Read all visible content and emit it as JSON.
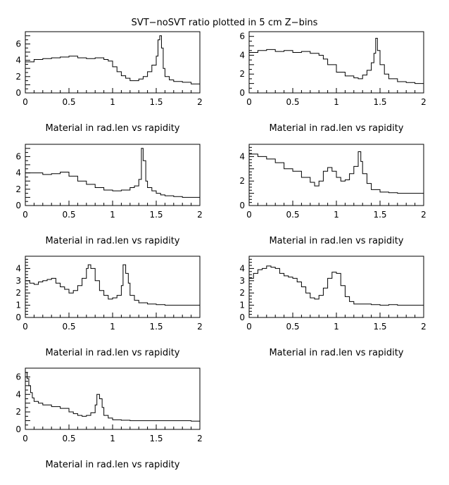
{
  "title": "SVT−noSVT ratio plotted in 5 cm Z−bins",
  "chart_data": [
    {
      "type": "line",
      "xlabel": "Material in rad.len vs rapidity",
      "xlim": [
        0,
        2
      ],
      "ylim": [
        0,
        7.5
      ],
      "xticks": [
        "0",
        "0.5",
        "1",
        "1.5",
        "2"
      ],
      "yticks": [
        "0",
        "2",
        "4",
        "6"
      ],
      "x": [
        0.0,
        0.1,
        0.2,
        0.3,
        0.4,
        0.5,
        0.6,
        0.7,
        0.8,
        0.9,
        0.95,
        1.0,
        1.05,
        1.1,
        1.15,
        1.2,
        1.25,
        1.3,
        1.35,
        1.4,
        1.45,
        1.5,
        1.52,
        1.54,
        1.56,
        1.58,
        1.6,
        1.65,
        1.7,
        1.8,
        1.9,
        2.0
      ],
      "y": [
        3.8,
        4.1,
        4.2,
        4.3,
        4.4,
        4.5,
        4.3,
        4.2,
        4.3,
        4.1,
        3.9,
        3.2,
        2.6,
        2.1,
        1.8,
        1.5,
        1.5,
        1.7,
        2.0,
        2.6,
        3.4,
        4.5,
        6.5,
        7.0,
        5.5,
        3.0,
        2.0,
        1.6,
        1.4,
        1.3,
        1.1,
        1.1
      ]
    },
    {
      "type": "line",
      "xlabel": "Material in rad.len vs rapidity",
      "xlim": [
        0,
        2
      ],
      "ylim": [
        0,
        6.5
      ],
      "xticks": [
        "0",
        "0.5",
        "1",
        "1.5",
        "2"
      ],
      "yticks": [
        "0",
        "2",
        "4",
        "6"
      ],
      "x": [
        0.0,
        0.1,
        0.2,
        0.3,
        0.4,
        0.5,
        0.6,
        0.7,
        0.8,
        0.85,
        0.9,
        1.0,
        1.1,
        1.2,
        1.25,
        1.3,
        1.35,
        1.4,
        1.43,
        1.45,
        1.47,
        1.5,
        1.55,
        1.6,
        1.7,
        1.8,
        1.9,
        2.0
      ],
      "y": [
        4.3,
        4.5,
        4.6,
        4.4,
        4.5,
        4.3,
        4.4,
        4.2,
        4.0,
        3.6,
        3.0,
        2.2,
        1.8,
        1.6,
        1.5,
        1.9,
        2.4,
        3.2,
        4.2,
        5.8,
        4.5,
        3.0,
        2.0,
        1.5,
        1.2,
        1.1,
        1.0,
        1.0
      ]
    },
    {
      "type": "line",
      "xlabel": "Material in rad.len vs rapidity",
      "xlim": [
        0,
        2
      ],
      "ylim": [
        0,
        7.5
      ],
      "xticks": [
        "0",
        "0.5",
        "1",
        "1.5",
        "2"
      ],
      "yticks": [
        "0",
        "2",
        "4",
        "6"
      ],
      "x": [
        0.0,
        0.1,
        0.2,
        0.3,
        0.4,
        0.5,
        0.6,
        0.7,
        0.8,
        0.9,
        1.0,
        1.1,
        1.2,
        1.25,
        1.3,
        1.33,
        1.35,
        1.38,
        1.4,
        1.45,
        1.5,
        1.55,
        1.6,
        1.7,
        1.8,
        1.9,
        2.0
      ],
      "y": [
        4.0,
        4.0,
        3.8,
        3.9,
        4.1,
        3.6,
        3.0,
        2.6,
        2.2,
        1.9,
        1.8,
        1.9,
        2.2,
        2.4,
        3.2,
        7.0,
        5.5,
        3.0,
        2.2,
        1.8,
        1.5,
        1.3,
        1.2,
        1.1,
        1.0,
        1.0,
        1.0
      ]
    },
    {
      "type": "line",
      "xlabel": "Material in rad.len vs rapidity",
      "xlim": [
        0,
        2
      ],
      "ylim": [
        0,
        5
      ],
      "xticks": [
        "0",
        "0.5",
        "1",
        "1.5",
        "2"
      ],
      "yticks": [
        "0",
        "2",
        "4"
      ],
      "x": [
        0.0,
        0.1,
        0.2,
        0.3,
        0.4,
        0.5,
        0.6,
        0.7,
        0.75,
        0.8,
        0.85,
        0.9,
        0.95,
        1.0,
        1.05,
        1.1,
        1.15,
        1.2,
        1.25,
        1.28,
        1.3,
        1.35,
        1.4,
        1.5,
        1.6,
        1.7,
        1.8,
        1.9,
        2.0
      ],
      "y": [
        4.2,
        4.0,
        3.8,
        3.5,
        3.0,
        2.8,
        2.3,
        1.9,
        1.6,
        2.0,
        2.8,
        3.1,
        2.8,
        2.3,
        2.0,
        2.1,
        2.6,
        3.2,
        4.4,
        3.6,
        2.6,
        1.8,
        1.3,
        1.1,
        1.05,
        1.0,
        1.0,
        1.0,
        1.0
      ]
    },
    {
      "type": "line",
      "xlabel": "Material in rad.len vs rapidity",
      "xlim": [
        0,
        2
      ],
      "ylim": [
        0,
        5
      ],
      "xticks": [
        "0",
        "0.5",
        "1",
        "1.5",
        "2"
      ],
      "yticks": [
        "0",
        "1",
        "2",
        "3",
        "4"
      ],
      "x": [
        0.0,
        0.05,
        0.1,
        0.15,
        0.2,
        0.25,
        0.3,
        0.35,
        0.4,
        0.45,
        0.5,
        0.55,
        0.6,
        0.65,
        0.7,
        0.72,
        0.75,
        0.8,
        0.85,
        0.9,
        0.95,
        1.0,
        1.05,
        1.1,
        1.12,
        1.15,
        1.18,
        1.2,
        1.25,
        1.3,
        1.4,
        1.5,
        1.6,
        1.7,
        1.8,
        1.9,
        2.0
      ],
      "y": [
        3.0,
        2.8,
        2.7,
        2.9,
        3.0,
        3.1,
        3.2,
        2.8,
        2.5,
        2.3,
        2.0,
        2.2,
        2.6,
        3.2,
        4.0,
        4.3,
        4.0,
        3.0,
        2.2,
        1.8,
        1.5,
        1.6,
        1.8,
        2.6,
        4.3,
        3.6,
        2.8,
        1.8,
        1.4,
        1.2,
        1.1,
        1.05,
        1.0,
        1.0,
        1.0,
        1.0,
        1.0
      ]
    },
    {
      "type": "line",
      "xlabel": "Material in rad.len vs rapidity",
      "xlim": [
        0,
        2
      ],
      "ylim": [
        0,
        5
      ],
      "xticks": [
        "0",
        "0.5",
        "1",
        "1.5",
        "2"
      ],
      "yticks": [
        "0",
        "1",
        "2",
        "3",
        "4"
      ],
      "x": [
        0.0,
        0.05,
        0.1,
        0.15,
        0.2,
        0.25,
        0.3,
        0.35,
        0.4,
        0.45,
        0.5,
        0.55,
        0.6,
        0.65,
        0.7,
        0.75,
        0.8,
        0.85,
        0.9,
        0.95,
        1.0,
        1.05,
        1.1,
        1.15,
        1.2,
        1.3,
        1.4,
        1.5,
        1.6,
        1.7,
        1.8,
        1.9,
        2.0
      ],
      "y": [
        3.2,
        3.6,
        3.9,
        4.0,
        4.2,
        4.1,
        4.0,
        3.6,
        3.4,
        3.3,
        3.2,
        2.9,
        2.5,
        2.0,
        1.6,
        1.5,
        1.8,
        2.4,
        3.2,
        3.7,
        3.6,
        2.6,
        1.7,
        1.3,
        1.1,
        1.1,
        1.05,
        1.0,
        1.05,
        1.0,
        1.0,
        1.0,
        1.0
      ]
    },
    {
      "type": "line",
      "xlabel": "Material in rad.len vs rapidity",
      "xlim": [
        0,
        2
      ],
      "ylim": [
        0,
        7
      ],
      "xticks": [
        "0",
        "0.5",
        "1",
        "1.5",
        "2"
      ],
      "yticks": [
        "0",
        "2",
        "4",
        "6"
      ],
      "x": [
        0.0,
        0.02,
        0.04,
        0.06,
        0.08,
        0.1,
        0.15,
        0.2,
        0.3,
        0.4,
        0.5,
        0.55,
        0.6,
        0.65,
        0.7,
        0.75,
        0.8,
        0.82,
        0.85,
        0.88,
        0.9,
        0.95,
        1.0,
        1.1,
        1.2,
        1.3,
        1.4,
        1.5,
        1.6,
        1.7,
        1.8,
        1.9,
        2.0
      ],
      "y": [
        6.5,
        5.8,
        5.0,
        4.2,
        3.6,
        3.2,
        3.0,
        2.8,
        2.6,
        2.4,
        2.0,
        1.8,
        1.6,
        1.5,
        1.6,
        1.9,
        2.8,
        4.0,
        3.5,
        2.5,
        1.6,
        1.3,
        1.1,
        1.05,
        1.0,
        1.0,
        1.0,
        1.0,
        1.0,
        1.0,
        1.0,
        0.95,
        0.95
      ]
    }
  ]
}
